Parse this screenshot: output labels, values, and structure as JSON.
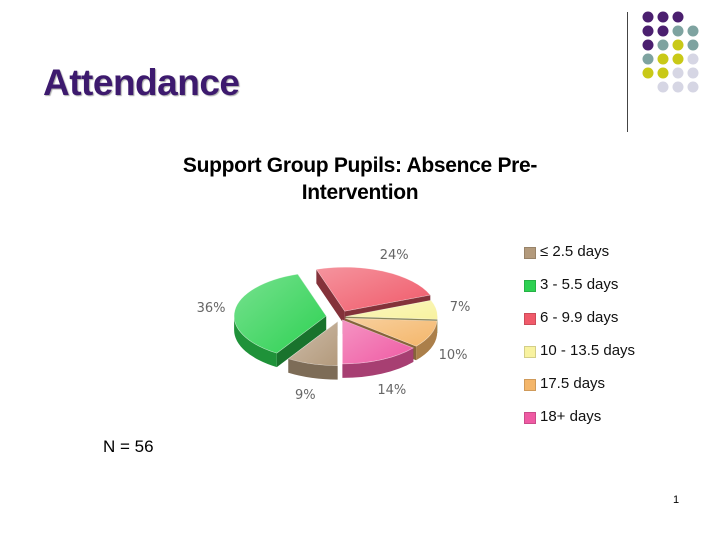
{
  "slide": {
    "title": "Attendance",
    "n_label": "N = 56",
    "page_number": "1"
  },
  "chart_data": {
    "type": "pie",
    "title": "Support Group Pupils: Absence Pre-Intervention",
    "title_lines": [
      "Support Group Pupils: Absence Pre-",
      "Intervention"
    ],
    "legend_position": "right",
    "categories": [
      "≤ 2.5 days",
      "3 - 5.5 days",
      "6 - 9.9 days",
      "10 - 13.5 days",
      "17.5 days",
      "18+ days"
    ],
    "values": [
      9,
      36,
      24,
      7,
      10,
      14
    ],
    "value_labels": [
      "9%",
      "36%",
      "24%",
      "7%",
      "10%",
      "14%"
    ],
    "colors": [
      "#b39a7c",
      "#2dd152",
      "#f05a6a",
      "#f8f2a0",
      "#f4b66a",
      "#ef5aa3"
    ]
  },
  "decoration": {
    "dot_colors": [
      "#4b1f6f",
      "#7ea3a0",
      "#c9c917",
      "#d6d6e4"
    ]
  }
}
